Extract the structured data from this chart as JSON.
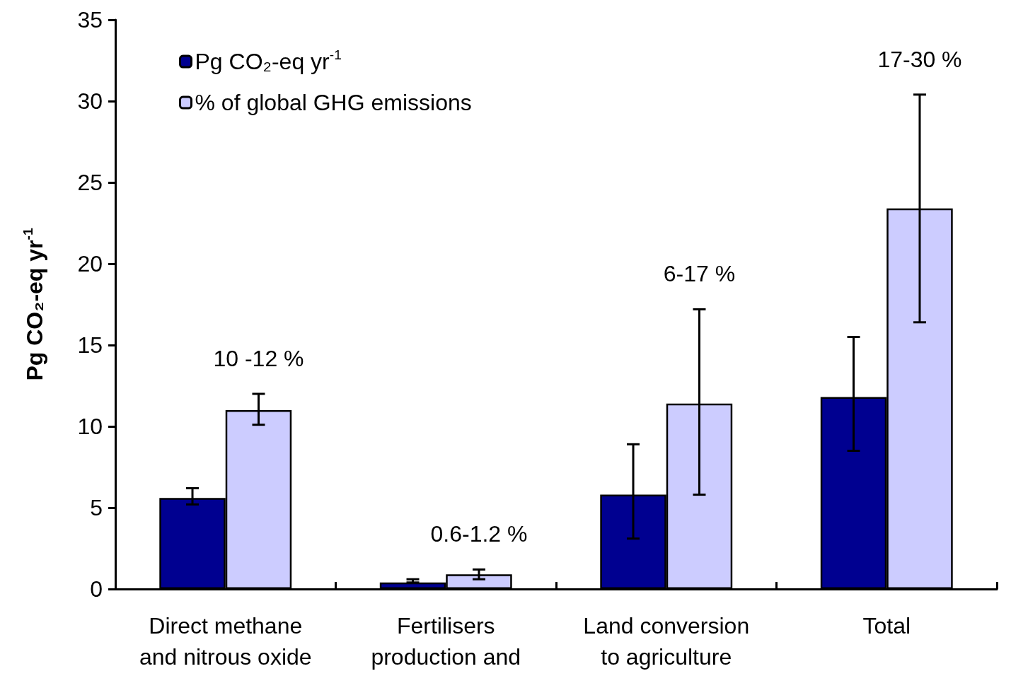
{
  "chart_data": {
    "type": "bar",
    "ylabel": "Pg CO₂-eq yr$^{-1}$",
    "categories": [
      "Direct methane\nand nitrous oxide",
      "Fertilisers\nproduction and",
      "Land conversion\nto agriculture",
      "Total"
    ],
    "series": [
      {
        "name": "Pg CO₂-eq yr$^{-1}$",
        "color": "#000090",
        "values": [
          5.6,
          0.4,
          5.8,
          11.8
        ],
        "errors": [
          [
            5.2,
            6.2
          ],
          [
            0.4,
            0.6
          ],
          [
            3.1,
            8.9
          ],
          [
            8.5,
            15.5
          ]
        ]
      },
      {
        "name": "% of global GHG emissions",
        "color": "#ccccff",
        "values": [
          11.0,
          0.9,
          11.4,
          23.4
        ],
        "errors": [
          [
            10.1,
            12.0
          ],
          [
            0.6,
            1.2
          ],
          [
            5.8,
            17.2
          ],
          [
            16.4,
            30.4
          ]
        ]
      }
    ],
    "annotations": [
      "10 -12 %",
      "0.6-1.2 %",
      "6-17 %",
      "17-30 %"
    ],
    "ylim": [
      0,
      35
    ],
    "yticks": [
      0,
      5,
      10,
      15,
      20,
      25,
      30,
      35
    ],
    "grid": false,
    "legend": "top left"
  }
}
